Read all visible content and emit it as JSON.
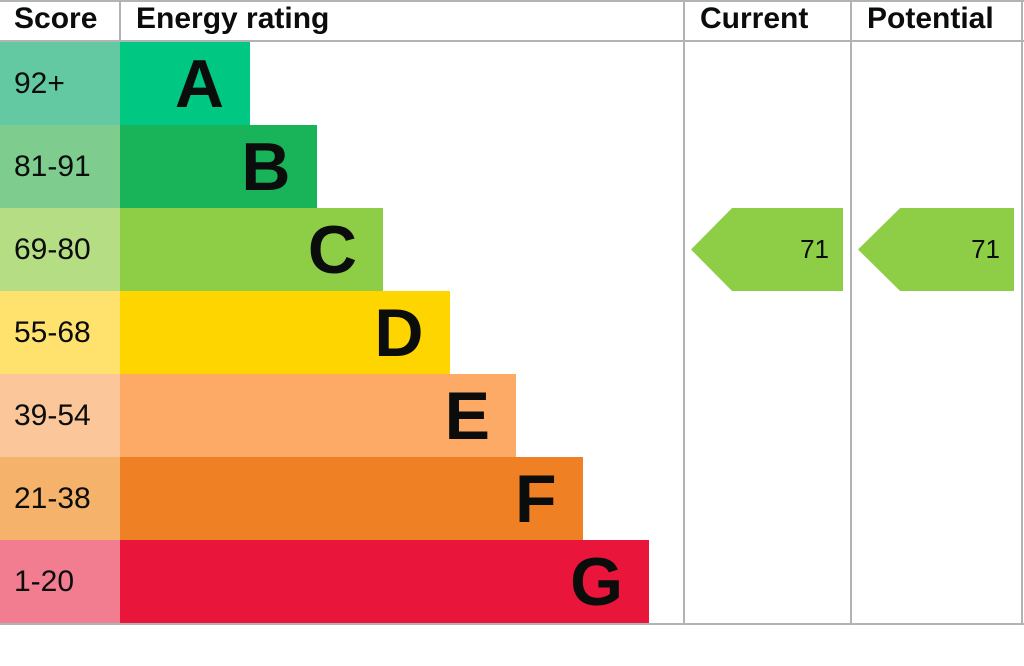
{
  "header": {
    "score_label": "Score",
    "energy_rating_label": "Energy rating",
    "current_label": "Current",
    "potential_label": "Potential"
  },
  "bands": [
    {
      "letter": "A",
      "score_range": "92+",
      "bar_color": "#00c781",
      "score_cell_color": "#63c9a3"
    },
    {
      "letter": "B",
      "score_range": "81-91",
      "bar_color": "#19b459",
      "score_cell_color": "#7fcd8e"
    },
    {
      "letter": "C",
      "score_range": "69-80",
      "bar_color": "#8dce46",
      "score_cell_color": "#b4dd84"
    },
    {
      "letter": "D",
      "score_range": "55-68",
      "bar_color": "#ffd500",
      "score_cell_color": "#ffe26e"
    },
    {
      "letter": "E",
      "score_range": "39-54",
      "bar_color": "#fcaa65",
      "score_cell_color": "#fac69a"
    },
    {
      "letter": "F",
      "score_range": "21-38",
      "bar_color": "#ef8023",
      "score_cell_color": "#f5b26b"
    },
    {
      "letter": "G",
      "score_range": "1-20",
      "bar_color": "#e9153b",
      "score_cell_color": "#f27d90"
    }
  ],
  "ratings": {
    "current": {
      "value": "71",
      "band": "C",
      "arrow_color": "#8dce46"
    },
    "potential": {
      "value": "71",
      "band": "C",
      "arrow_color": "#8dce46"
    }
  },
  "colors": {
    "border": "#b1b4b6",
    "text": "#0b0c0c",
    "background": "#ffffff"
  },
  "chart_data": {
    "type": "bar",
    "orientation": "horizontal",
    "categories": [
      "A",
      "B",
      "C",
      "D",
      "E",
      "F",
      "G"
    ],
    "score_ranges": [
      "92+",
      "81-91",
      "69-80",
      "55-68",
      "39-54",
      "21-38",
      "1-20"
    ],
    "band_colors": [
      "#00c781",
      "#19b459",
      "#8dce46",
      "#ffd500",
      "#fcaa65",
      "#ef8023",
      "#e9153b"
    ],
    "column_headers": [
      "Score",
      "Energy rating",
      "Current",
      "Potential"
    ],
    "current": 71,
    "potential": 71,
    "current_band": "C",
    "potential_band": "C",
    "legend_position": "none",
    "grid": false
  }
}
